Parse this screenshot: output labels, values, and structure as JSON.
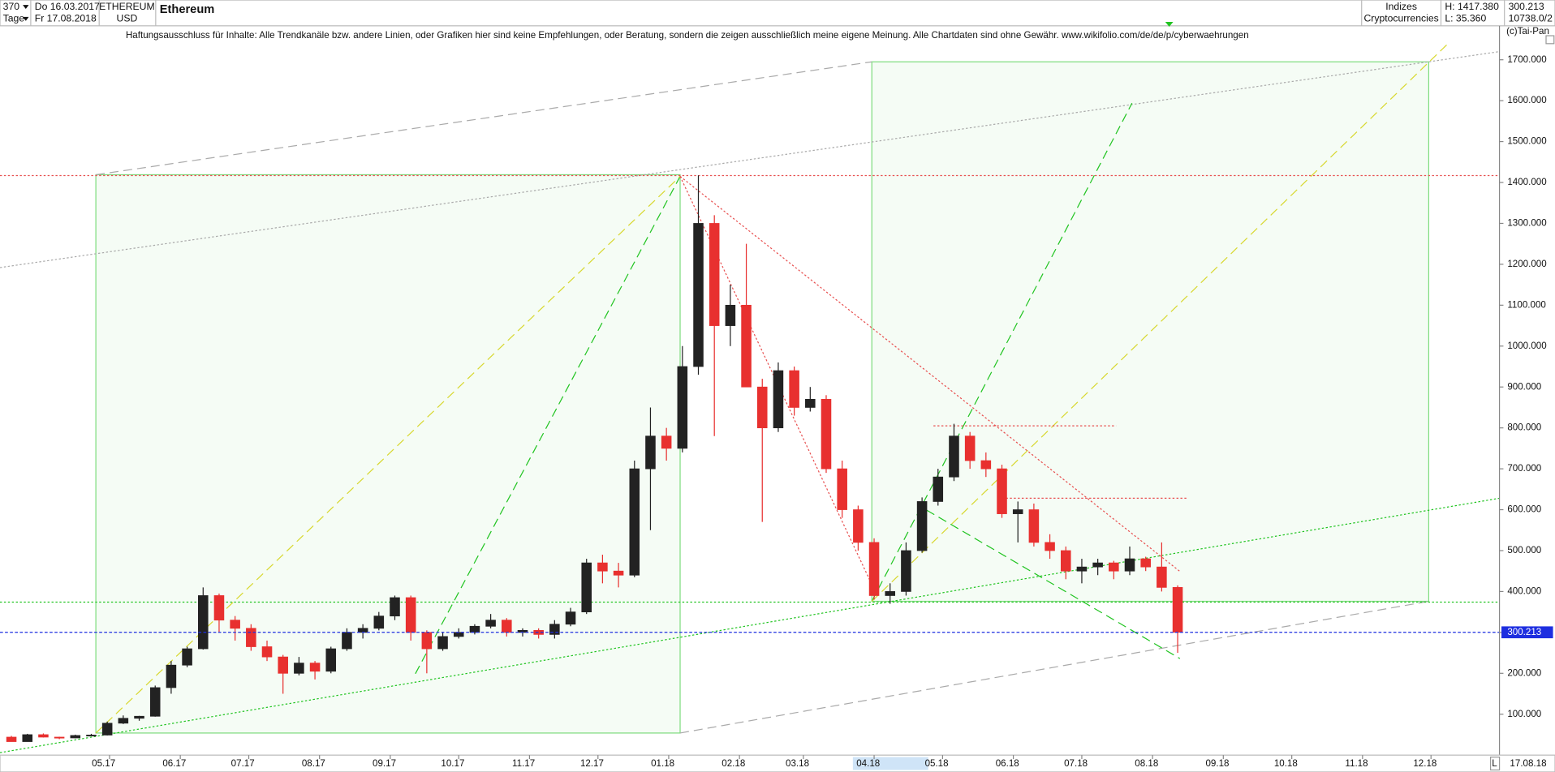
{
  "header": {
    "period_count": "370",
    "date_from": "Do 16.03.2017",
    "unit": "Tage",
    "date_to": "Fr 17.08.2018",
    "symbol": "ETHEREUM",
    "currency": "USD",
    "group": "Indizes",
    "market": "Cryptocurrencies",
    "high_label": "H: 1417.380",
    "low_label": "L: 35.360",
    "last_label": "300.213",
    "index_label": "10738.0/2",
    "copyright": "(c)Tai-Pan",
    "end_date": "17.08.18",
    "scroll_mark": "L"
  },
  "chart_data": {
    "type": "candlestick",
    "title": "Ethereum",
    "subtitle": "Haftungsausschluss für Inhalte: Alle Trendkanäle bzw. andere Linien, oder Grafiken hier sind keine Empfehlungen, oder Beratung, sondern die zeigen ausschließlich meine eigene Meinung. Alle Chartdaten sind ohne Gewähr.  www.wikifolio.com/de/de/p/cyberwaehrungen",
    "x": [
      3,
      10,
      17,
      24,
      31,
      38,
      45,
      52,
      59,
      66,
      73,
      80,
      87,
      94,
      101,
      108,
      115,
      122,
      129,
      136,
      143,
      150,
      157,
      164,
      171,
      178,
      185,
      192,
      199,
      206,
      213,
      220,
      227,
      234,
      241,
      248,
      255,
      262,
      269,
      276,
      283,
      290,
      297,
      304,
      311,
      318,
      325,
      332,
      339,
      346,
      353,
      360,
      367,
      374,
      381,
      388,
      395,
      402,
      409,
      416,
      423,
      430,
      437,
      444,
      451,
      458,
      465,
      472,
      479,
      486,
      493,
      500,
      507,
      514
    ],
    "open": [
      44,
      33,
      50,
      44,
      42,
      48,
      49,
      78,
      90,
      95,
      165,
      220,
      260,
      390,
      330,
      310,
      265,
      240,
      200,
      225,
      205,
      260,
      300,
      310,
      340,
      385,
      300,
      260,
      290,
      300,
      315,
      330,
      300,
      305,
      295,
      320,
      350,
      470,
      450,
      440,
      700,
      780,
      750,
      950,
      1300,
      1050,
      1100,
      900,
      800,
      940,
      850,
      870,
      700,
      600,
      520,
      390,
      400,
      500,
      620,
      680,
      780,
      720,
      700,
      590,
      600,
      520,
      500,
      450,
      460,
      470,
      450,
      480,
      460,
      410
    ],
    "high": [
      47,
      52,
      53,
      45,
      50,
      52,
      82,
      97,
      96,
      170,
      230,
      265,
      410,
      395,
      340,
      320,
      280,
      245,
      240,
      230,
      265,
      310,
      320,
      350,
      390,
      390,
      305,
      300,
      310,
      320,
      345,
      335,
      310,
      310,
      330,
      360,
      480,
      490,
      470,
      720,
      850,
      800,
      1000,
      1417.38,
      1320,
      1150,
      1250,
      920,
      960,
      950,
      900,
      880,
      720,
      610,
      530,
      420,
      520,
      630,
      700,
      810,
      790,
      740,
      710,
      620,
      615,
      540,
      510,
      480,
      480,
      475,
      510,
      485,
      520,
      415
    ],
    "low": [
      35.36,
      33,
      43,
      39,
      41,
      47,
      48,
      76,
      84,
      94,
      150,
      215,
      258,
      300,
      280,
      255,
      230,
      150,
      195,
      185,
      200,
      255,
      285,
      305,
      330,
      280,
      200,
      255,
      285,
      295,
      310,
      290,
      290,
      285,
      285,
      315,
      345,
      420,
      410,
      435,
      550,
      720,
      740,
      930,
      780,
      1000,
      900,
      570,
      790,
      830,
      840,
      690,
      580,
      500,
      380,
      370,
      390,
      495,
      610,
      670,
      700,
      680,
      580,
      520,
      510,
      480,
      430,
      420,
      440,
      430,
      440,
      450,
      400,
      250
    ],
    "close": [
      33,
      50,
      44,
      42,
      48,
      49,
      78,
      90,
      95,
      165,
      220,
      260,
      390,
      330,
      310,
      265,
      240,
      200,
      225,
      205,
      260,
      300,
      310,
      340,
      385,
      300,
      260,
      290,
      300,
      315,
      330,
      300,
      305,
      295,
      320,
      350,
      470,
      450,
      440,
      700,
      780,
      750,
      950,
      1300,
      1050,
      1100,
      900,
      800,
      940,
      850,
      870,
      700,
      600,
      520,
      390,
      400,
      500,
      620,
      680,
      780,
      720,
      700,
      590,
      600,
      520,
      500,
      450,
      460,
      470,
      450,
      480,
      460,
      410,
      300.213
    ],
    "up_color": "#222222",
    "down_color": "#e8302f",
    "last_color": "#1d2ee0",
    "xlim": [
      -2,
      655
    ],
    "xticks": [
      {
        "value": 46,
        "label": "05.17"
      },
      {
        "value": 77,
        "label": "06.17"
      },
      {
        "value": 107,
        "label": "07.17"
      },
      {
        "value": 138,
        "label": "08.17"
      },
      {
        "value": 169,
        "label": "09.17"
      },
      {
        "value": 199,
        "label": "10.17"
      },
      {
        "value": 230,
        "label": "11.17"
      },
      {
        "value": 260,
        "label": "12.17"
      },
      {
        "value": 291,
        "label": "01.18"
      },
      {
        "value": 322,
        "label": "02.18"
      },
      {
        "value": 350,
        "label": "03.18"
      },
      {
        "value": 381,
        "label": "04.18"
      },
      {
        "value": 411,
        "label": "05.18"
      },
      {
        "value": 442,
        "label": "06.18"
      },
      {
        "value": 472,
        "label": "07.18"
      },
      {
        "value": 503,
        "label": "08.18"
      },
      {
        "value": 534,
        "label": "09.18"
      },
      {
        "value": 564,
        "label": "10.18"
      },
      {
        "value": 595,
        "label": "11.18"
      },
      {
        "value": 625,
        "label": "12.18"
      }
    ],
    "ylim": [
      0,
      1800
    ],
    "yticks": [
      {
        "value": 100,
        "label": "100.000"
      },
      {
        "value": 200,
        "label": "200.000"
      },
      {
        "value": 300,
        "label": "300.000"
      },
      {
        "value": 400,
        "label": "400.000"
      },
      {
        "value": 500,
        "label": "500.000"
      },
      {
        "value": 600,
        "label": "600.000"
      },
      {
        "value": 700,
        "label": "700.000"
      },
      {
        "value": 800,
        "label": "800.000"
      },
      {
        "value": 900,
        "label": "900.000"
      },
      {
        "value": 1000,
        "label": "1000.000"
      },
      {
        "value": 1100,
        "label": "1100.000"
      },
      {
        "value": 1200,
        "label": "1200.000"
      },
      {
        "value": 1300,
        "label": "1300.000"
      },
      {
        "value": 1400,
        "label": "1400.000"
      },
      {
        "value": 1500,
        "label": "1500.000"
      },
      {
        "value": 1600,
        "label": "1600.000"
      },
      {
        "value": 1700,
        "label": "1700.000"
      }
    ],
    "overlays": [
      {
        "kind": "rect",
        "x": [
          40,
          296
        ],
        "y": [
          54,
          1419
        ],
        "color": "#7fdc7f"
      },
      {
        "kind": "rect",
        "x": [
          380,
          624
        ],
        "y": [
          376,
          1695
        ],
        "color": "#7fdc7f"
      },
      {
        "kind": "line",
        "x": [
          40,
          380
        ],
        "y": [
          1419,
          1695
        ],
        "color": "#aaaaaa",
        "style": "dashed"
      },
      {
        "kind": "line",
        "x": [
          -2,
          655
        ],
        "y": [
          1192,
          1720
        ],
        "color": "#aaaaaa",
        "style": "dotted"
      },
      {
        "kind": "line",
        "x": [
          296,
          624
        ],
        "y": [
          54,
          376
        ],
        "color": "#aaaaaa",
        "style": "dashed"
      },
      {
        "kind": "line",
        "x": [
          -2,
          655
        ],
        "y": [
          6,
          628
        ],
        "color": "#22c422",
        "style": "dotted"
      },
      {
        "kind": "line",
        "x": [
          -2,
          655
        ],
        "y": [
          374,
          374
        ],
        "color": "#22c422",
        "style": "dotted"
      },
      {
        "kind": "line",
        "x": [
          -2,
          655
        ],
        "y": [
          1417,
          1417
        ],
        "color": "#e85050",
        "style": "dotted"
      },
      {
        "kind": "line",
        "x": [
          180,
          296
        ],
        "y": [
          199,
          1415
        ],
        "color": "#22c422",
        "style": "dashed"
      },
      {
        "kind": "line",
        "x": [
          380,
          494
        ],
        "y": [
          376,
          1594
        ],
        "color": "#22c422",
        "style": "dashed"
      },
      {
        "kind": "line",
        "x": [
          40,
          296
        ],
        "y": [
          54,
          1415
        ],
        "color": "#d8d830",
        "style": "dashed"
      },
      {
        "kind": "line",
        "x": [
          380,
          632
        ],
        "y": [
          376,
          1737
        ],
        "color": "#d8d830",
        "style": "dashed"
      },
      {
        "kind": "line",
        "x": [
          296,
          380
        ],
        "y": [
          1415,
          417
        ],
        "color": "#e85050",
        "style": "dotted"
      },
      {
        "kind": "line",
        "x": [
          296,
          515
        ],
        "y": [
          1415,
          449
        ],
        "color": "#e85050",
        "style": "dotted"
      },
      {
        "kind": "line",
        "x": [
          407,
          487
        ],
        "y": [
          805,
          805
        ],
        "color": "#e85050",
        "style": "dotted"
      },
      {
        "kind": "line",
        "x": [
          437,
          518
        ],
        "y": [
          628,
          628
        ],
        "color": "#e85050",
        "style": "dotted"
      },
      {
        "kind": "line",
        "x": [
          404,
          515
        ],
        "y": [
          599,
          236
        ],
        "color": "#22c422",
        "style": "dashed"
      }
    ]
  }
}
